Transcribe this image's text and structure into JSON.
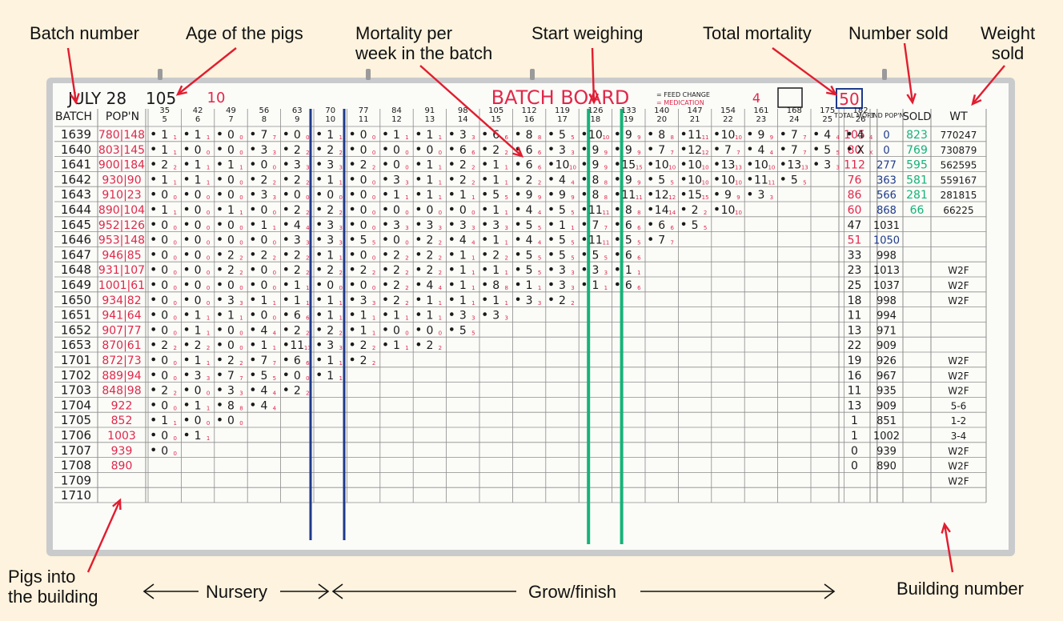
{
  "annotations": {
    "batch_number": "Batch number",
    "age_of_pigs": "Age of the pigs",
    "mortality_per_week": "Mortality per\nweek in the batch",
    "start_weighing": "Start weighing",
    "total_mortality": "Total mortality",
    "number_sold": "Number sold",
    "weight_sold": "Weight\nsold",
    "pigs_into_building": "Pigs into\nthe building",
    "nursery": "Nursery",
    "grow_finish": "Grow/finish",
    "building_number": "Building number"
  },
  "board": {
    "date": "JULY 28",
    "day": "105",
    "week": "10",
    "title": "BATCH BOARD",
    "week_no": "4",
    "total_box": "50",
    "legend_feed": "= FEED CHANGE",
    "legend_medication": "= MEDICATION",
    "col_batch": "BATCH",
    "col_pop": "POP'N",
    "col_total_mort": "TOTAL MORT",
    "col_end_pop": "END POP'N",
    "col_sold": "SOLD",
    "col_wt": "WT",
    "age_cols": [
      {
        "day": "35",
        "wk": "5"
      },
      {
        "day": "42",
        "wk": "6"
      },
      {
        "day": "49",
        "wk": "7"
      },
      {
        "day": "56",
        "wk": "8"
      },
      {
        "day": "63",
        "wk": "9"
      },
      {
        "day": "70",
        "wk": "10"
      },
      {
        "day": "77",
        "wk": "11"
      },
      {
        "day": "84",
        "wk": "12"
      },
      {
        "day": "91",
        "wk": "13"
      },
      {
        "day": "98",
        "wk": "14"
      },
      {
        "day": "105",
        "wk": "15"
      },
      {
        "day": "112",
        "wk": "16"
      },
      {
        "day": "119",
        "wk": "17"
      },
      {
        "day": "126",
        "wk": "18"
      },
      {
        "day": "133",
        "wk": "19"
      },
      {
        "day": "140",
        "wk": "20"
      },
      {
        "day": "147",
        "wk": "21"
      },
      {
        "day": "154",
        "wk": "22"
      },
      {
        "day": "161",
        "wk": "23"
      },
      {
        "day": "168",
        "wk": "24"
      },
      {
        "day": "175",
        "wk": "25"
      },
      {
        "day": "182",
        "wk": "26"
      }
    ],
    "rows": [
      {
        "batch": "1639",
        "pop": "780|148",
        "mort": "105",
        "end": "0",
        "sold": "823",
        "wt": "770247"
      },
      {
        "batch": "1640",
        "pop": "803|145",
        "mort": "80",
        "end": "0",
        "sold": "769",
        "wt": "730879"
      },
      {
        "batch": "1641",
        "pop": "900|184",
        "mort": "112",
        "end": "277",
        "sold": "595",
        "wt": "562595"
      },
      {
        "batch": "1642",
        "pop": "930|90",
        "mort": "76",
        "end": "363",
        "sold": "581",
        "wt": "559167"
      },
      {
        "batch": "1643",
        "pop": "910|23",
        "mort": "86",
        "end": "566",
        "sold": "281",
        "wt": "281815"
      },
      {
        "batch": "1644",
        "pop": "890|104",
        "mort": "60",
        "end": "868",
        "sold": "66",
        "wt": "66225"
      },
      {
        "batch": "1645",
        "pop": "952|126",
        "mort": "47",
        "end": "1031",
        "sold": "",
        "wt": ""
      },
      {
        "batch": "1646",
        "pop": "953|148",
        "mort": "51",
        "end": "1050",
        "sold": "",
        "wt": ""
      },
      {
        "batch": "1647",
        "pop": "946|85",
        "mort": "33",
        "end": "998",
        "sold": "",
        "wt": ""
      },
      {
        "batch": "1648",
        "pop": "931|107",
        "mort": "23",
        "end": "1013",
        "sold": "",
        "wt": "W2F"
      },
      {
        "batch": "1649",
        "pop": "1001|61",
        "mort": "25",
        "end": "1037",
        "sold": "",
        "wt": "W2F"
      },
      {
        "batch": "1650",
        "pop": "934|82",
        "mort": "18",
        "end": "998",
        "sold": "",
        "wt": "W2F"
      },
      {
        "batch": "1651",
        "pop": "941|64",
        "mort": "11",
        "end": "994",
        "sold": "",
        "wt": ""
      },
      {
        "batch": "1652",
        "pop": "907|77",
        "mort": "13",
        "end": "971",
        "sold": "",
        "wt": ""
      },
      {
        "batch": "1653",
        "pop": "870|61",
        "mort": "22",
        "end": "909",
        "sold": "",
        "wt": ""
      },
      {
        "batch": "1701",
        "pop": "872|73",
        "mort": "19",
        "end": "926",
        "sold": "",
        "wt": "W2F"
      },
      {
        "batch": "1702",
        "pop": "889|94",
        "mort": "16",
        "end": "967",
        "sold": "",
        "wt": "W2F"
      },
      {
        "batch": "1703",
        "pop": "848|98",
        "mort": "11",
        "end": "935",
        "sold": "",
        "wt": "W2F"
      },
      {
        "batch": "1704",
        "pop": "922",
        "mort": "13",
        "end": "909",
        "sold": "",
        "wt": "5-6"
      },
      {
        "batch": "1705",
        "pop": "852",
        "mort": "1",
        "end": "851",
        "sold": "",
        "wt": "1-2"
      },
      {
        "batch": "1706",
        "pop": "1003",
        "mort": "1",
        "end": "1002",
        "sold": "",
        "wt": "3-4"
      },
      {
        "batch": "1707",
        "pop": "939",
        "mort": "0",
        "end": "939",
        "sold": "",
        "wt": "W2F"
      },
      {
        "batch": "1708",
        "pop": "890",
        "mort": "0",
        "end": "890",
        "sold": "",
        "wt": "W2F"
      },
      {
        "batch": "1709",
        "pop": "",
        "mort": "",
        "end": "",
        "sold": "",
        "wt": "W2F"
      },
      {
        "batch": "1710",
        "pop": "",
        "mort": "",
        "end": "",
        "sold": "",
        "wt": ""
      }
    ],
    "weekly": [
      [
        "1",
        "1",
        "0",
        "7",
        "0",
        "1",
        "0",
        "1",
        "1",
        "3",
        "6",
        "8",
        "5",
        "10",
        "9",
        "8",
        "11",
        "10",
        "9",
        "7",
        "4",
        "4"
      ],
      [
        "1",
        "0",
        "0",
        "3",
        "2",
        "2",
        "0",
        "0",
        "0",
        "6",
        "2",
        "6",
        "3",
        "9",
        "9",
        "7",
        "12",
        "7",
        "4",
        "7",
        "5",
        "X"
      ],
      [
        "2",
        "1",
        "1",
        "0",
        "3",
        "3",
        "2",
        "0",
        "1",
        "2",
        "1",
        "6",
        "10",
        "9",
        "15",
        "10",
        "10",
        "13",
        "10",
        "13",
        "3",
        ""
      ],
      [
        "1",
        "1",
        "0",
        "2",
        "2",
        "1",
        "0",
        "3",
        "1",
        "2",
        "1",
        "2",
        "4",
        "8",
        "9",
        "5",
        "10",
        "10",
        "11",
        "5",
        "",
        ""
      ],
      [
        "0",
        "0",
        "0",
        "3",
        "0",
        "0",
        "0",
        "1",
        "1",
        "1",
        "5",
        "9",
        "9",
        "8",
        "11",
        "12",
        "15",
        "9",
        "3",
        "",
        "",
        ""
      ],
      [
        "1",
        "0",
        "1",
        "0",
        "2",
        "2",
        "0",
        "0",
        "0",
        "0",
        "1",
        "4",
        "5",
        "11",
        "8",
        "14",
        "2",
        "10",
        "",
        "",
        "",
        ""
      ],
      [
        "0",
        "0",
        "0",
        "1",
        "4",
        "3",
        "0",
        "3",
        "3",
        "3",
        "3",
        "5",
        "1",
        "7",
        "6",
        "6",
        "5",
        "",
        "",
        "",
        "",
        ""
      ],
      [
        "0",
        "0",
        "0",
        "0",
        "3",
        "3",
        "5",
        "0",
        "2",
        "4",
        "1",
        "4",
        "5",
        "11",
        "5",
        "7",
        "",
        "",
        "",
        "",
        "",
        ""
      ],
      [
        "0",
        "0",
        "2",
        "2",
        "2",
        "1",
        "0",
        "2",
        "2",
        "1",
        "2",
        "5",
        "5",
        "5",
        "6",
        "",
        "",
        "",
        "",
        "",
        "",
        ""
      ],
      [
        "0",
        "0",
        "2",
        "0",
        "2",
        "2",
        "2",
        "2",
        "2",
        "1",
        "1",
        "5",
        "3",
        "3",
        "1",
        "",
        "",
        "",
        "",
        "",
        "",
        ""
      ],
      [
        "0",
        "0",
        "0",
        "0",
        "1",
        "0",
        "0",
        "2",
        "4",
        "1",
        "8",
        "1",
        "3",
        "1",
        "6",
        "",
        "",
        "",
        "",
        "",
        "",
        ""
      ],
      [
        "0",
        "0",
        "3",
        "1",
        "1",
        "1",
        "3",
        "2",
        "1",
        "1",
        "1",
        "3",
        "2",
        "",
        "",
        "",
        "",
        "",
        "",
        "",
        "",
        ""
      ],
      [
        "0",
        "1",
        "1",
        "0",
        "6",
        "1",
        "1",
        "1",
        "1",
        "3",
        "3",
        "",
        "",
        "",
        "",
        "",
        "",
        "",
        "",
        "",
        "",
        ""
      ],
      [
        "0",
        "1",
        "0",
        "4",
        "2",
        "2",
        "1",
        "0",
        "0",
        "5",
        "",
        "",
        "",
        "",
        "",
        "",
        "",
        "",
        "",
        "",
        "",
        ""
      ],
      [
        "2",
        "2",
        "0",
        "1",
        "11",
        "3",
        "2",
        "1",
        "2",
        "",
        "",
        "",
        "",
        "",
        "",
        "",
        "",
        "",
        "",
        "",
        "",
        ""
      ],
      [
        "0",
        "1",
        "2",
        "7",
        "6",
        "1",
        "2",
        "",
        "",
        "",
        "",
        "",
        "",
        "",
        "",
        "",
        "",
        "",
        "",
        "",
        "",
        ""
      ],
      [
        "0",
        "3",
        "7",
        "5",
        "0",
        "1",
        "",
        "",
        "",
        "",
        "",
        "",
        "",
        "",
        "",
        "",
        "",
        "",
        "",
        "",
        "",
        ""
      ],
      [
        "2",
        "0",
        "3",
        "4",
        "2",
        "",
        "",
        "",
        "",
        "",
        "",
        "",
        "",
        "",
        "",
        "",
        "",
        "",
        "",
        "",
        "",
        ""
      ],
      [
        "0",
        "1",
        "8",
        "4",
        "",
        "",
        "",
        "",
        "",
        "",
        "",
        "",
        "",
        "",
        "",
        "",
        "",
        "",
        "",
        "",
        "",
        ""
      ],
      [
        "1",
        "0",
        "0",
        "",
        "",
        "",
        "",
        "",
        "",
        "",
        "",
        "",
        "",
        "",
        "",
        "",
        "",
        "",
        "",
        "",
        "",
        ""
      ],
      [
        "0",
        "1",
        "",
        "",
        "",
        "",
        "",
        "",
        "",
        "",
        "",
        "",
        "",
        "",
        "",
        "",
        "",
        "",
        "",
        "",
        "",
        ""
      ],
      [
        "0",
        "",
        "",
        "",
        "",
        "",
        "",
        "",
        "",
        "",
        "",
        "",
        "",
        "",
        "",
        "",
        "",
        "",
        "",
        "",
        "",
        ""
      ]
    ]
  },
  "colors": {
    "board_bg": "#fbfbf8",
    "frame": "#c9cacc",
    "ink_black": "#1b1b1b",
    "ink_red": "#e0284a",
    "ink_blue": "#1e3a8a",
    "ink_green": "#16b27a",
    "grid": "#8c8c8c"
  }
}
